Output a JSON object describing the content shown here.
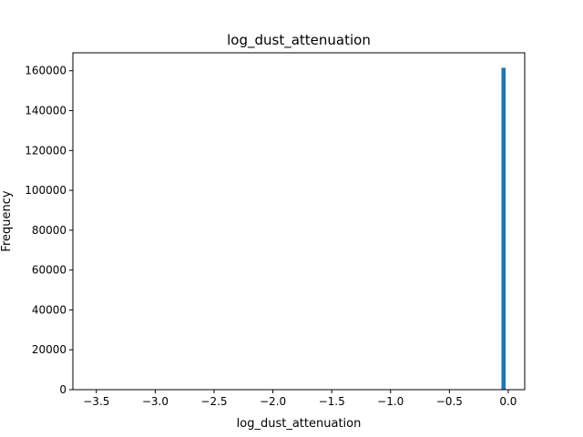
{
  "chart_data": {
    "type": "bar",
    "title": "log_dust_attenuation",
    "xlabel": "log_dust_attenuation",
    "ylabel": "Frequency",
    "xlim": [
      -3.7,
      0.14
    ],
    "ylim": [
      0,
      169000
    ],
    "x_ticks": [
      -3.5,
      -3.0,
      -2.5,
      -2.0,
      -1.5,
      -1.0,
      -0.5,
      0.0
    ],
    "x_tick_labels": [
      "−3.5",
      "−3.0",
      "−2.5",
      "−2.0",
      "−1.5",
      "−1.0",
      "−0.5",
      "0.0"
    ],
    "y_ticks": [
      0,
      20000,
      40000,
      60000,
      80000,
      100000,
      120000,
      140000,
      160000
    ],
    "y_tick_labels": [
      "0",
      "20000",
      "40000",
      "60000",
      "80000",
      "100000",
      "120000",
      "140000",
      "160000"
    ],
    "bars": [
      {
        "x0": -0.0577,
        "x1": -0.0216,
        "value": 161500
      }
    ],
    "grid": false,
    "bar_color": "#1f77b4"
  }
}
